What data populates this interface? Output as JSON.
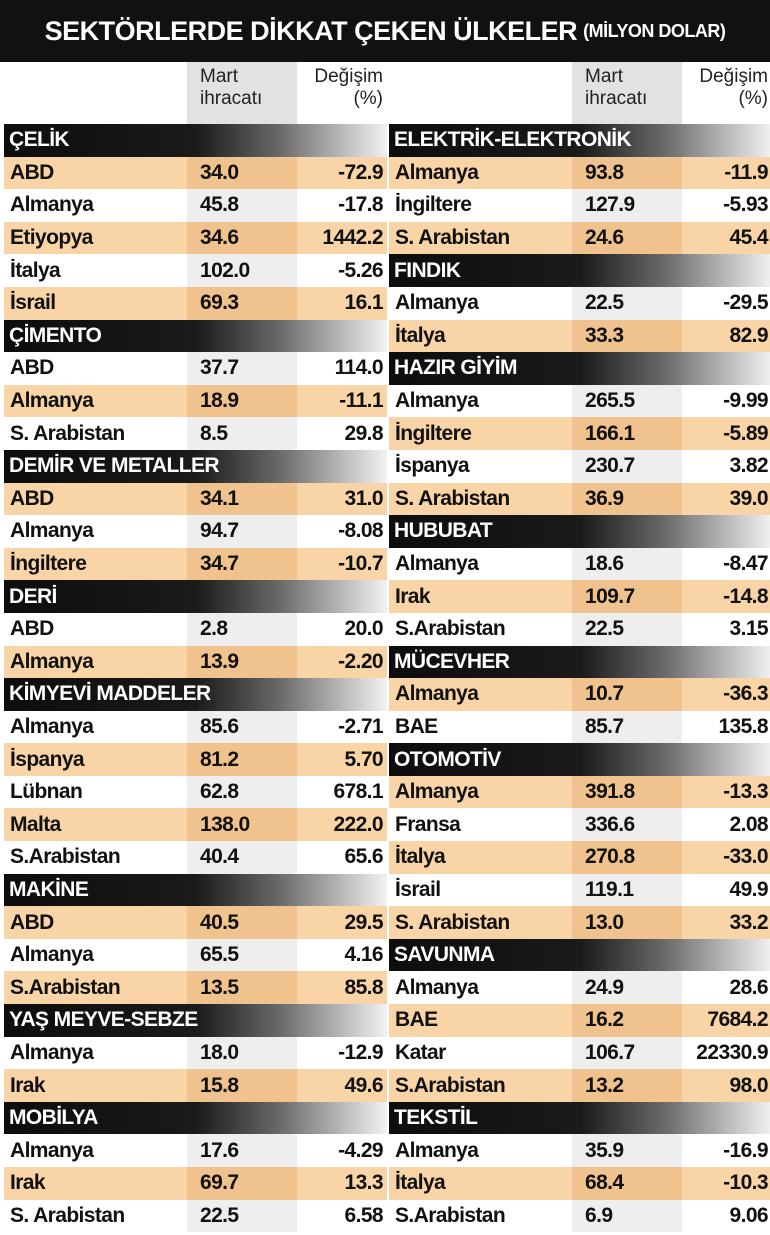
{
  "title": "SEKTÖRLERDE DİKKAT ÇEKEN ÜLKELER",
  "title_unit": "(MİLYON DOLAR)",
  "headers": {
    "mart_line1": "Mart",
    "mart_line2": "ihracatı",
    "deg_line1": "Değişim",
    "deg_line2": "(%)"
  },
  "left_sectors": [
    {
      "name": "ÇELİK",
      "rows": [
        {
          "country": "ABD",
          "value": "34.0",
          "change": "-72.9"
        },
        {
          "country": "Almanya",
          "value": "45.8",
          "change": "-17.8"
        },
        {
          "country": "Etiyopya",
          "value": "34.6",
          "change": "1442.2"
        },
        {
          "country": "İtalya",
          "value": "102.0",
          "change": "-5.26"
        },
        {
          "country": "İsrail",
          "value": "69.3",
          "change": "16.1"
        }
      ]
    },
    {
      "name": "ÇİMENTO",
      "rows": [
        {
          "country": "ABD",
          "value": "37.7",
          "change": "114.0"
        },
        {
          "country": "Almanya",
          "value": "18.9",
          "change": "-11.1"
        },
        {
          "country": "S. Arabistan",
          "value": "8.5",
          "change": "29.8"
        }
      ]
    },
    {
      "name": "DEMİR VE METALLER",
      "rows": [
        {
          "country": "ABD",
          "value": "34.1",
          "change": "31.0"
        },
        {
          "country": "Almanya",
          "value": "94.7",
          "change": "-8.08"
        },
        {
          "country": "İngiltere",
          "value": "34.7",
          "change": "-10.7"
        }
      ]
    },
    {
      "name": "DERİ",
      "rows": [
        {
          "country": "ABD",
          "value": "2.8",
          "change": "20.0"
        },
        {
          "country": "Almanya",
          "value": "13.9",
          "change": "-2.20"
        }
      ]
    },
    {
      "name": "KİMYEVİ MADDELER",
      "rows": [
        {
          "country": "Almanya",
          "value": "85.6",
          "change": "-2.71"
        },
        {
          "country": "İspanya",
          "value": "81.2",
          "change": "5.70"
        },
        {
          "country": "Lübnan",
          "value": "62.8",
          "change": "678.1"
        },
        {
          "country": "Malta",
          "value": "138.0",
          "change": "222.0"
        },
        {
          "country": "S.Arabistan",
          "value": "40.4",
          "change": "65.6"
        }
      ]
    },
    {
      "name": "MAKİNE",
      "rows": [
        {
          "country": "ABD",
          "value": "40.5",
          "change": "29.5"
        },
        {
          "country": "Almanya",
          "value": "65.5",
          "change": "4.16"
        },
        {
          "country": "S.Arabistan",
          "value": "13.5",
          "change": "85.8"
        }
      ]
    },
    {
      "name": "YAŞ MEYVE-SEBZE",
      "rows": [
        {
          "country": "Almanya",
          "value": "18.0",
          "change": "-12.9"
        },
        {
          "country": "Irak",
          "value": "15.8",
          "change": "49.6"
        }
      ]
    },
    {
      "name": "MOBİLYA",
      "rows": [
        {
          "country": "Almanya",
          "value": "17.6",
          "change": "-4.29"
        },
        {
          "country": "Irak",
          "value": "69.7",
          "change": "13.3"
        },
        {
          "country": "S. Arabistan",
          "value": "22.5",
          "change": "6.58"
        }
      ]
    }
  ],
  "right_sectors": [
    {
      "name": "ELEKTRİK-ELEKTRONİK",
      "rows": [
        {
          "country": "Almanya",
          "value": "93.8",
          "change": "-11.9"
        },
        {
          "country": "İngiltere",
          "value": "127.9",
          "change": "-5.93"
        },
        {
          "country": "S. Arabistan",
          "value": "24.6",
          "change": "45.4"
        }
      ]
    },
    {
      "name": "FINDIK",
      "rows": [
        {
          "country": "Almanya",
          "value": "22.5",
          "change": "-29.5"
        },
        {
          "country": "İtalya",
          "value": "33.3",
          "change": "82.9"
        }
      ]
    },
    {
      "name": "HAZIR GİYİM",
      "rows": [
        {
          "country": "Almanya",
          "value": "265.5",
          "change": "-9.99"
        },
        {
          "country": "İngiltere",
          "value": "166.1",
          "change": "-5.89"
        },
        {
          "country": "İspanya",
          "value": "230.7",
          "change": "3.82"
        },
        {
          "country": "S. Arabistan",
          "value": "36.9",
          "change": "39.0"
        }
      ]
    },
    {
      "name": "HUBUBAT",
      "rows": [
        {
          "country": "Almanya",
          "value": "18.6",
          "change": "-8.47"
        },
        {
          "country": "Irak",
          "value": "109.7",
          "change": "-14.8"
        },
        {
          "country": "S.Arabistan",
          "value": "22.5",
          "change": "3.15"
        }
      ]
    },
    {
      "name": "MÜCEVHER",
      "rows": [
        {
          "country": "Almanya",
          "value": "10.7",
          "change": "-36.3"
        },
        {
          "country": "BAE",
          "value": "85.7",
          "change": "135.8"
        }
      ]
    },
    {
      "name": "OTOMOTİV",
      "rows": [
        {
          "country": "Almanya",
          "value": "391.8",
          "change": "-13.3"
        },
        {
          "country": "Fransa",
          "value": "336.6",
          "change": "2.08"
        },
        {
          "country": "İtalya",
          "value": "270.8",
          "change": "-33.0"
        },
        {
          "country": "İsrail",
          "value": "119.1",
          "change": "49.9"
        },
        {
          "country": "S. Arabistan",
          "value": "13.0",
          "change": "33.2"
        }
      ]
    },
    {
      "name": "SAVUNMA",
      "rows": [
        {
          "country": "Almanya",
          "value": "24.9",
          "change": "28.6"
        },
        {
          "country": "BAE",
          "value": "16.2",
          "change": "7684.2"
        },
        {
          "country": "Katar",
          "value": "106.7",
          "change": "22330.9"
        },
        {
          "country": "S.Arabistan",
          "value": "13.2",
          "change": "98.0"
        }
      ]
    },
    {
      "name": "TEKSTİL",
      "rows": [
        {
          "country": "Almanya",
          "value": "35.9",
          "change": "-16.9"
        },
        {
          "country": "İtalya",
          "value": "68.4",
          "change": "-10.3"
        },
        {
          "country": "S.Arabistan",
          "value": "6.9",
          "change": "9.06"
        }
      ]
    }
  ]
}
